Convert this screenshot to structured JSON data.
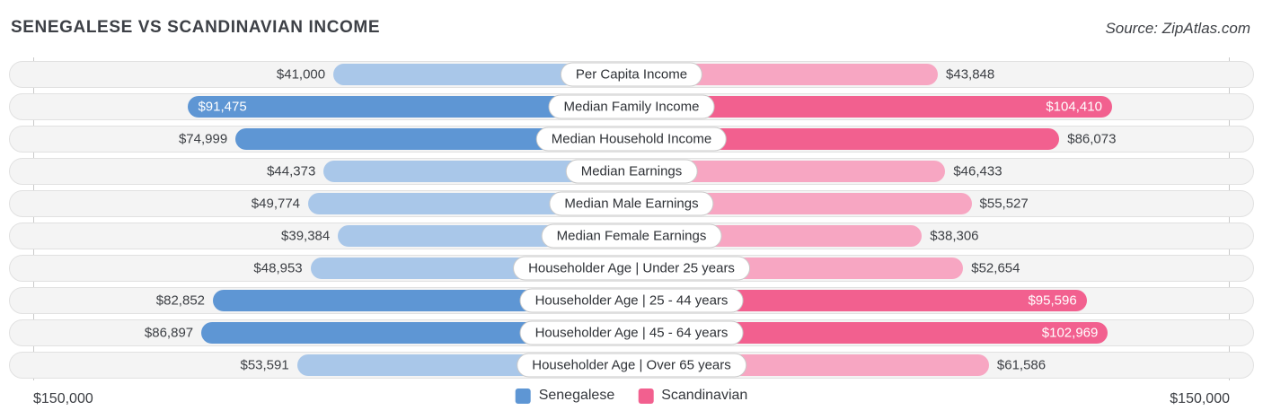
{
  "page": {
    "title": "SENEGALESE VS SCANDINAVIAN INCOME",
    "source": "Source: ZipAtlas.com"
  },
  "chart_data": {
    "type": "bar",
    "variant": "bidirectional-tornado",
    "title": "SENEGALESE VS SCANDINAVIAN INCOME",
    "categories": [
      "Per Capita Income",
      "Median Family Income",
      "Median Household Income",
      "Median Earnings",
      "Median Male Earnings",
      "Median Female Earnings",
      "Householder Age | Under 25 years",
      "Householder Age | 25 - 44 years",
      "Householder Age | 45 - 64 years",
      "Householder Age | Over 65 years"
    ],
    "series": [
      {
        "name": "Senegalese",
        "side": "left",
        "color_strong": "#5e96d4",
        "color_light": "#a9c7e9",
        "values": [
          41000,
          91475,
          74999,
          44373,
          49774,
          39384,
          48953,
          82852,
          86897,
          53591
        ],
        "labels": [
          "$41,000",
          "$91,475",
          "$74,999",
          "$44,373",
          "$49,774",
          "$39,384",
          "$48,953",
          "$82,852",
          "$86,897",
          "$53,591"
        ]
      },
      {
        "name": "Scandinavian",
        "side": "right",
        "color_strong": "#f2608f",
        "color_light": "#f7a6c2",
        "values": [
          43848,
          104410,
          86073,
          46433,
          55527,
          38306,
          52654,
          95596,
          102969,
          61586
        ],
        "labels": [
          "$43,848",
          "$104,410",
          "$86,073",
          "$46,433",
          "$55,527",
          "$38,306",
          "$52,654",
          "$95,596",
          "$102,969",
          "$61,586"
        ]
      }
    ],
    "axis": {
      "max": 150000,
      "left_label": "$150,000",
      "right_label": "$150,000"
    },
    "legend": [
      "Senegalese",
      "Scandinavian"
    ],
    "layout_hints": {
      "legend_position": "bottom-center",
      "grid": "edge-ticks-only",
      "bar_scale_base_pct": 29,
      "bar_scale_span_pct": 69.4,
      "emphasis_min_value": 70000,
      "inside_label_min_value": 90000
    }
  }
}
